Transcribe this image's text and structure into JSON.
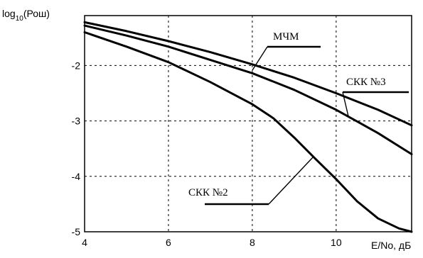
{
  "chart_data": {
    "type": "line",
    "title": "",
    "ylabel_base": "log",
    "ylabel_sub": "10",
    "ylabel_arg": "(Рош)",
    "xlabel": "E/No, дБ",
    "xlim": [
      4,
      11.8
    ],
    "ylim": [
      -5,
      -1.1
    ],
    "grid": true,
    "x_ticks": [
      4,
      6,
      8,
      10
    ],
    "y_ticks": [
      -2,
      -3,
      -4,
      -5
    ],
    "series": [
      {
        "name": "МЧМ",
        "x": [
          4,
          5,
          6,
          7,
          8,
          9,
          10,
          11,
          11.8
        ],
        "y": [
          -1.22,
          -1.38,
          -1.56,
          -1.76,
          -1.98,
          -2.22,
          -2.5,
          -2.8,
          -3.08
        ]
      },
      {
        "name": "СКК №3",
        "x": [
          4,
          5,
          6,
          7,
          8,
          9,
          10,
          11,
          11.8
        ],
        "y": [
          -1.28,
          -1.46,
          -1.66,
          -1.9,
          -2.14,
          -2.44,
          -2.8,
          -3.22,
          -3.6
        ]
      },
      {
        "name": "СКК №2",
        "x": [
          4,
          5,
          6,
          7,
          8,
          8.5,
          9,
          9.5,
          10,
          10.5,
          11,
          11.5,
          11.8
        ],
        "y": [
          -1.4,
          -1.66,
          -1.94,
          -2.3,
          -2.7,
          -2.95,
          -3.3,
          -3.68,
          -4.05,
          -4.45,
          -4.76,
          -4.94,
          -5.0
        ]
      }
    ]
  }
}
